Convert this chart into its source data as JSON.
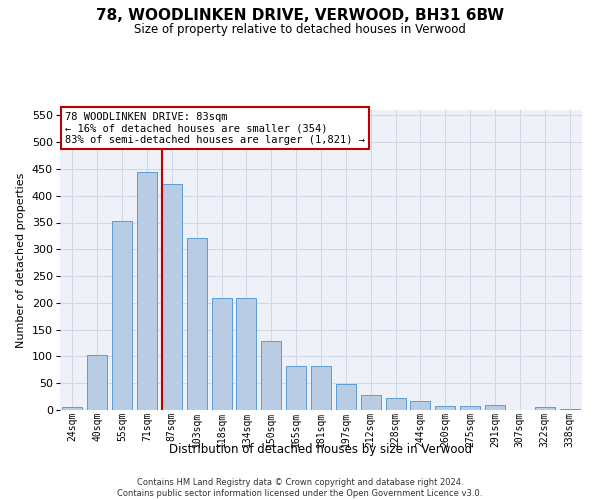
{
  "title_line1": "78, WOODLINKEN DRIVE, VERWOOD, BH31 6BW",
  "title_line2": "Size of property relative to detached houses in Verwood",
  "xlabel": "Distribution of detached houses by size in Verwood",
  "ylabel": "Number of detached properties",
  "categories": [
    "24sqm",
    "40sqm",
    "55sqm",
    "71sqm",
    "87sqm",
    "103sqm",
    "118sqm",
    "134sqm",
    "150sqm",
    "165sqm",
    "181sqm",
    "197sqm",
    "212sqm",
    "228sqm",
    "244sqm",
    "260sqm",
    "275sqm",
    "291sqm",
    "307sqm",
    "322sqm",
    "338sqm"
  ],
  "values": [
    5,
    102,
    353,
    444,
    421,
    321,
    210,
    210,
    128,
    83,
    83,
    48,
    28,
    23,
    17,
    8,
    8,
    10,
    0,
    5,
    2
  ],
  "bar_color": "#b8cce4",
  "bar_edge_color": "#5b9bd5",
  "grid_color": "#d0d8e8",
  "background_color": "#eef2f8",
  "vline_color": "#c00000",
  "annotation_text": "78 WOODLINKEN DRIVE: 83sqm\n← 16% of detached houses are smaller (354)\n83% of semi-detached houses are larger (1,821) →",
  "annotation_box_color": "#ffffff",
  "annotation_box_edge": "#c00000",
  "ylim": [
    0,
    560
  ],
  "yticks": [
    0,
    50,
    100,
    150,
    200,
    250,
    300,
    350,
    400,
    450,
    500,
    550
  ],
  "footer": "Contains HM Land Registry data © Crown copyright and database right 2024.\nContains public sector information licensed under the Open Government Licence v3.0.",
  "vline_bar_index": 4
}
